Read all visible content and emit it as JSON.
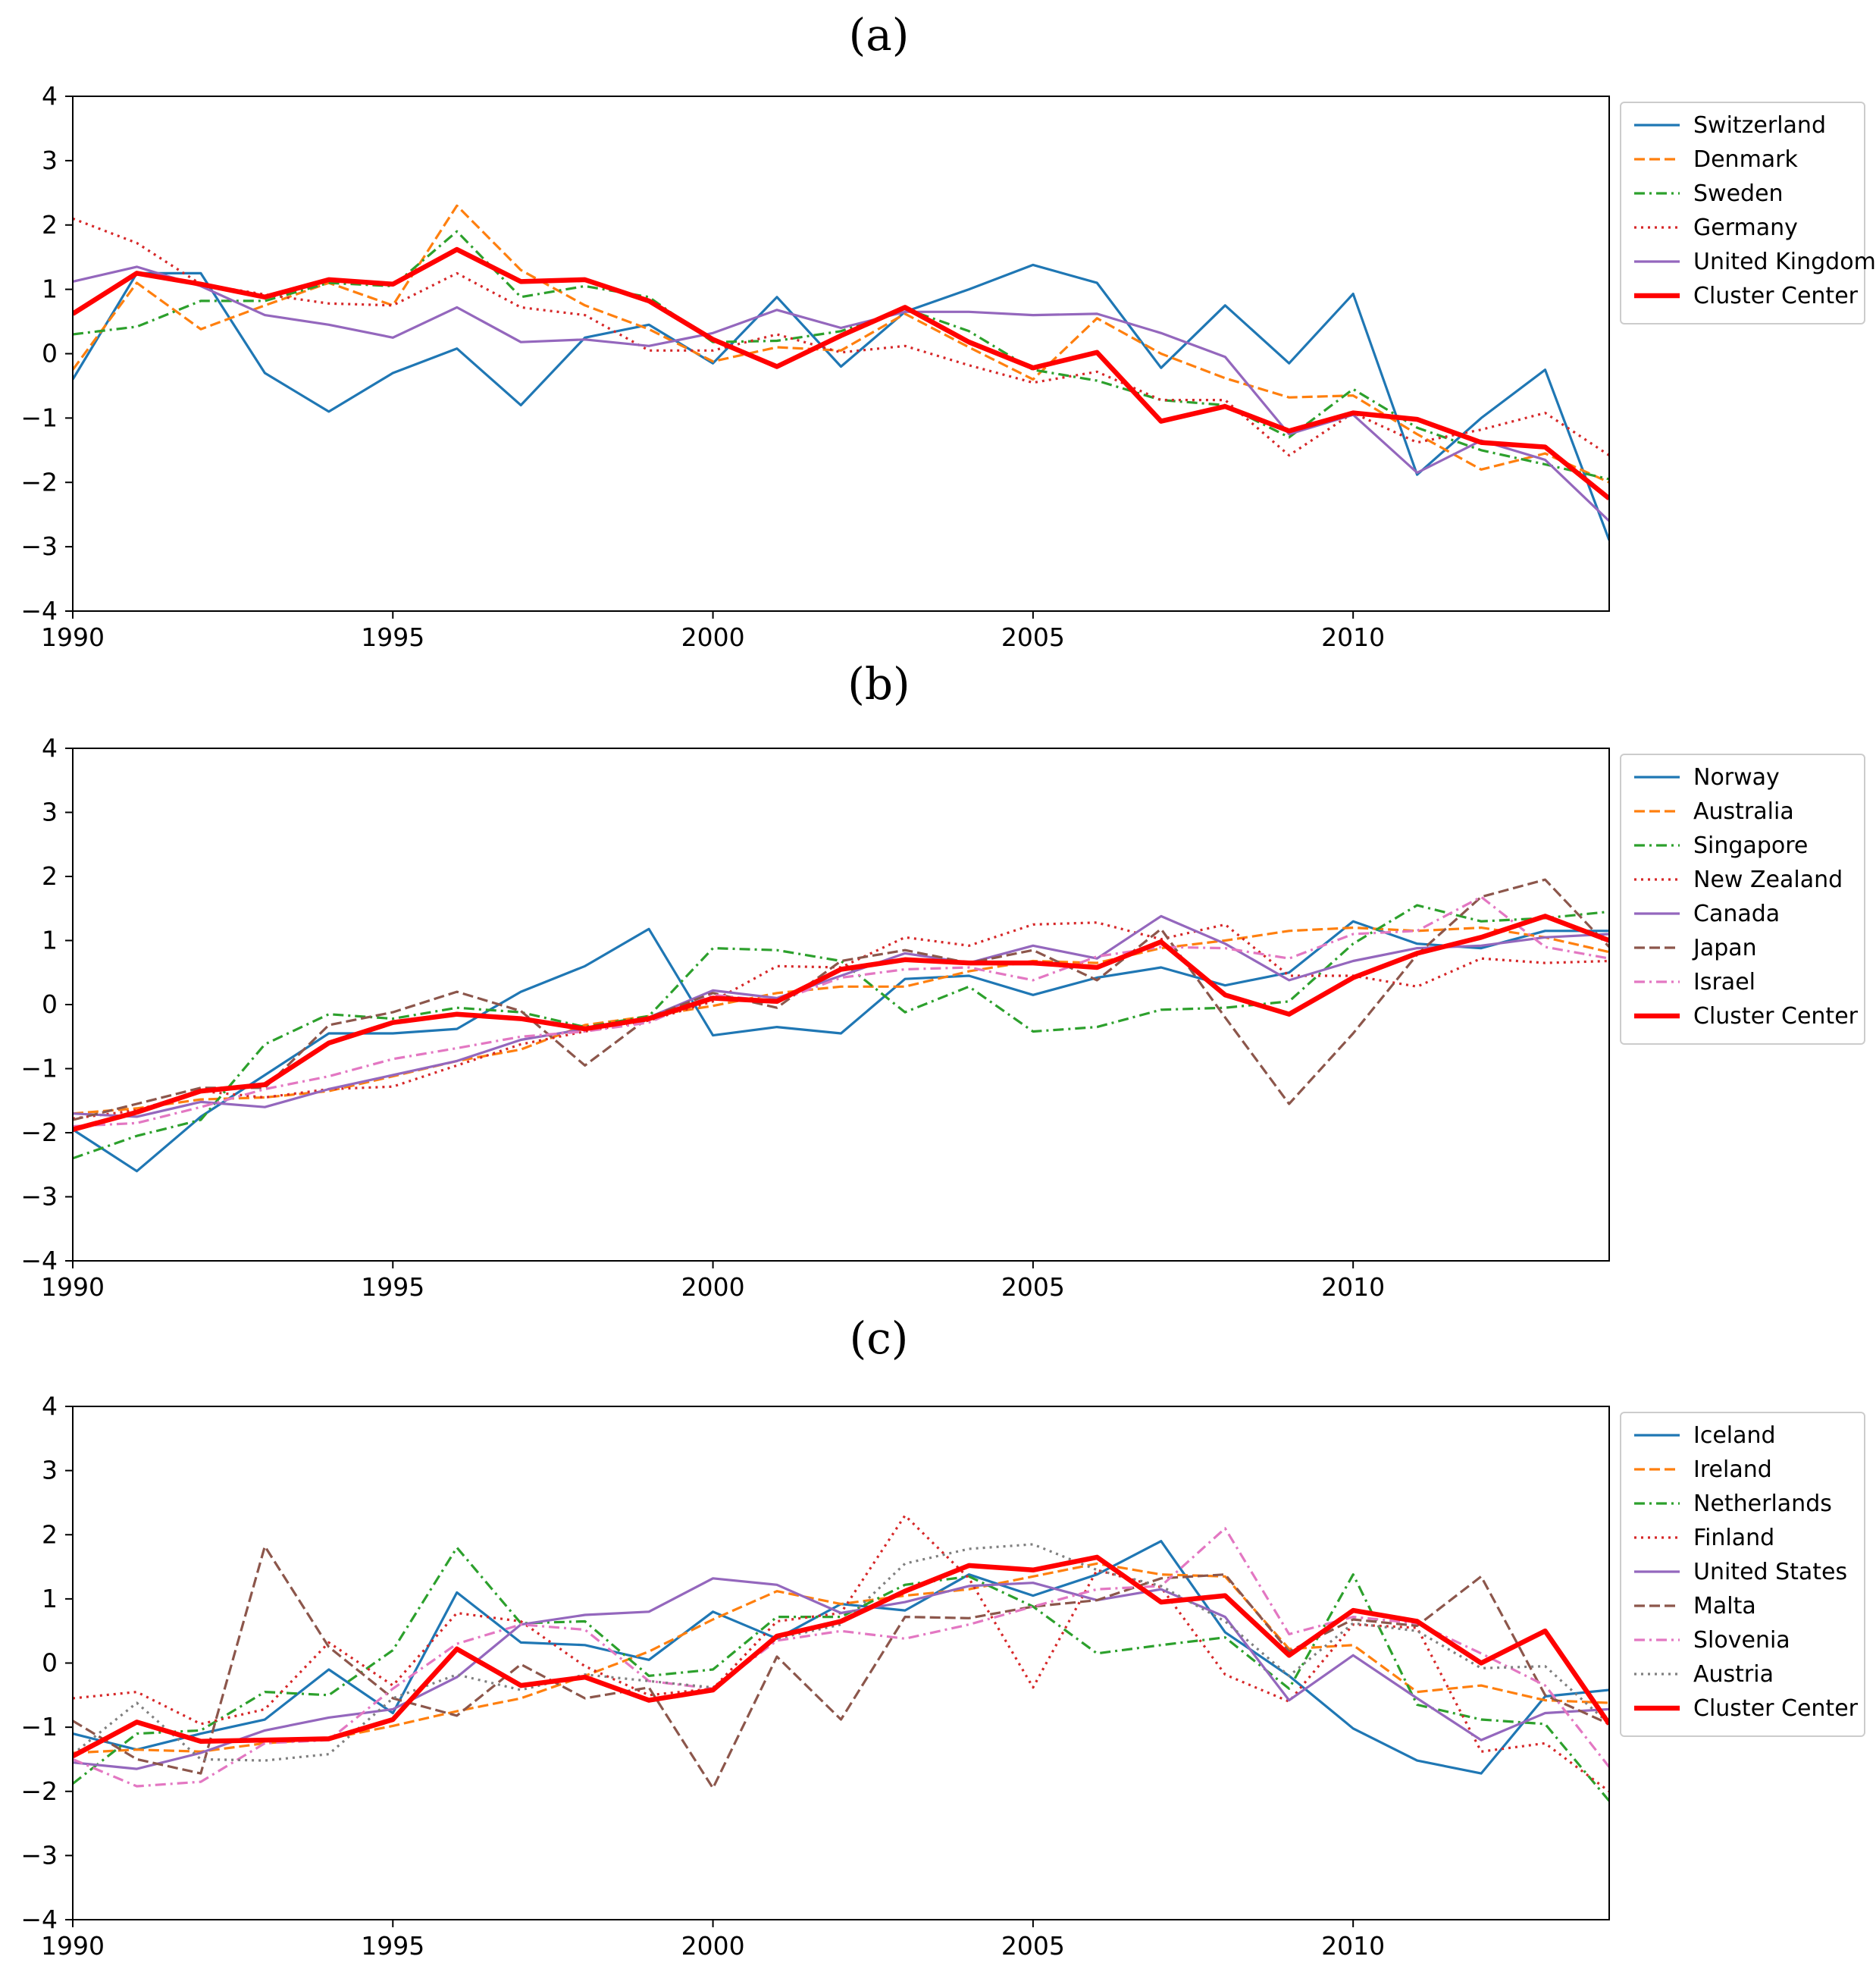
{
  "colors": {
    "blue": "#1f77b4",
    "orange": "#ff7f0e",
    "green": "#2ca02c",
    "red": "#d62728",
    "purple": "#9467bd",
    "brown": "#8c564b",
    "pink": "#e377c2",
    "gray": "#7f7f7f",
    "center": "#ff0000"
  },
  "chart_data": [
    {
      "type": "line",
      "title": "(a)",
      "x": [
        1990,
        1991,
        1992,
        1993,
        1994,
        1995,
        1996,
        1997,
        1998,
        1999,
        2000,
        2001,
        2002,
        2003,
        2004,
        2005,
        2006,
        2007,
        2008,
        2009,
        2010,
        2011,
        2012,
        2013,
        2014
      ],
      "xlim": [
        1990,
        2014
      ],
      "ylim": [
        -4,
        4
      ],
      "xticks": [
        "1990",
        "1995",
        "2000",
        "2005",
        "2010"
      ],
      "yticks": [
        "4",
        "3",
        "2",
        "1",
        "0",
        "−1",
        "−2",
        "−3",
        "−4"
      ],
      "legend_position": "outside-right",
      "series": [
        {
          "name": "Switzerland",
          "style": "solid",
          "color": "blue",
          "values": [
            -0.4,
            1.25,
            1.25,
            -0.3,
            -0.9,
            -0.3,
            0.08,
            -0.8,
            0.25,
            0.45,
            -0.15,
            0.88,
            -0.2,
            0.65,
            1.0,
            1.38,
            1.1,
            -0.22,
            0.75,
            -0.15,
            0.93,
            -1.88,
            -1.0,
            -0.25,
            -2.9
          ]
        },
        {
          "name": "Denmark",
          "style": "dashed",
          "color": "orange",
          "values": [
            -0.25,
            1.1,
            0.38,
            0.75,
            1.1,
            0.75,
            2.3,
            1.3,
            0.75,
            0.38,
            -0.12,
            0.1,
            0.05,
            0.62,
            0.1,
            -0.4,
            0.55,
            0.0,
            -0.38,
            -0.68,
            -0.65,
            -1.25,
            -1.8,
            -1.55,
            -2.0
          ]
        },
        {
          "name": "Sweden",
          "style": "dashdot",
          "color": "green",
          "values": [
            0.3,
            0.42,
            0.82,
            0.82,
            1.1,
            1.05,
            1.9,
            0.88,
            1.05,
            0.88,
            0.18,
            0.2,
            0.35,
            0.7,
            0.35,
            -0.25,
            -0.42,
            -0.72,
            -0.8,
            -1.3,
            -0.55,
            -1.15,
            -1.5,
            -1.72,
            -1.95
          ]
        },
        {
          "name": "Germany",
          "style": "dotted",
          "color": "red",
          "values": [
            2.1,
            1.72,
            1.08,
            0.92,
            0.78,
            0.75,
            1.25,
            0.72,
            0.6,
            0.05,
            0.05,
            0.3,
            0.02,
            0.12,
            -0.18,
            -0.45,
            -0.28,
            -0.72,
            -0.72,
            -1.58,
            -0.92,
            -1.38,
            -1.18,
            -0.92,
            -1.58
          ]
        },
        {
          "name": "United Kingdom",
          "style": "solid",
          "color": "purple",
          "values": [
            1.12,
            1.35,
            1.05,
            0.6,
            0.45,
            0.25,
            0.72,
            0.18,
            0.22,
            0.12,
            0.32,
            0.68,
            0.4,
            0.65,
            0.65,
            0.6,
            0.62,
            0.32,
            -0.05,
            -1.25,
            -0.95,
            -1.85,
            -1.35,
            -1.65,
            -2.6
          ]
        },
        {
          "name": "Cluster Center",
          "style": "thick",
          "color": "center",
          "values": [
            0.62,
            1.25,
            1.08,
            0.88,
            1.15,
            1.08,
            1.62,
            1.12,
            1.15,
            0.82,
            0.22,
            -0.2,
            0.28,
            0.72,
            0.18,
            -0.22,
            0.02,
            -1.05,
            -0.82,
            -1.2,
            -0.92,
            -1.02,
            -1.38,
            -1.45,
            -2.25
          ]
        }
      ]
    },
    {
      "type": "line",
      "title": "(b)",
      "x": [
        1990,
        1991,
        1992,
        1993,
        1994,
        1995,
        1996,
        1997,
        1998,
        1999,
        2000,
        2001,
        2002,
        2003,
        2004,
        2005,
        2006,
        2007,
        2008,
        2009,
        2010,
        2011,
        2012,
        2013,
        2014
      ],
      "xlim": [
        1990,
        2014
      ],
      "ylim": [
        -4,
        4
      ],
      "xticks": [
        "1990",
        "1995",
        "2000",
        "2005",
        "2010"
      ],
      "yticks": [
        "4",
        "3",
        "2",
        "1",
        "0",
        "−1",
        "−2",
        "−3",
        "−4"
      ],
      "legend_position": "outside-right",
      "series": [
        {
          "name": "Norway",
          "style": "solid",
          "color": "blue",
          "values": [
            -1.95,
            -2.6,
            -1.75,
            -1.1,
            -0.45,
            -0.45,
            -0.38,
            0.2,
            0.6,
            1.18,
            -0.48,
            -0.35,
            -0.45,
            0.4,
            0.45,
            0.15,
            0.42,
            0.58,
            0.3,
            0.5,
            1.3,
            0.95,
            0.88,
            1.15,
            1.15
          ]
        },
        {
          "name": "Australia",
          "style": "dashed",
          "color": "orange",
          "values": [
            -1.7,
            -1.62,
            -1.48,
            -1.45,
            -1.35,
            -1.12,
            -0.88,
            -0.7,
            -0.32,
            -0.18,
            -0.02,
            0.18,
            0.28,
            0.28,
            0.52,
            0.68,
            0.65,
            0.88,
            1.0,
            1.15,
            1.2,
            1.15,
            1.2,
            1.05,
            0.82
          ]
        },
        {
          "name": "Singapore",
          "style": "dashdot",
          "color": "green",
          "values": [
            -2.4,
            -2.05,
            -1.8,
            -0.62,
            -0.15,
            -0.22,
            -0.05,
            -0.12,
            -0.35,
            -0.18,
            0.88,
            0.85,
            0.68,
            -0.12,
            0.28,
            -0.42,
            -0.35,
            -0.08,
            -0.05,
            0.05,
            0.95,
            1.55,
            1.3,
            1.35,
            1.45
          ]
        },
        {
          "name": "New Zealand",
          "style": "dotted",
          "color": "red",
          "values": [
            -1.78,
            -1.65,
            -1.35,
            -1.45,
            -1.32,
            -1.28,
            -0.95,
            -0.62,
            -0.42,
            -0.25,
            0.05,
            0.6,
            0.58,
            1.05,
            0.92,
            1.25,
            1.28,
            1.02,
            1.25,
            0.45,
            0.45,
            0.28,
            0.72,
            0.65,
            0.68
          ]
        },
        {
          "name": "Canada",
          "style": "solid",
          "color": "purple",
          "values": [
            -1.7,
            -1.75,
            -1.52,
            -1.6,
            -1.32,
            -1.1,
            -0.88,
            -0.55,
            -0.38,
            -0.2,
            0.22,
            0.1,
            0.45,
            0.8,
            0.65,
            0.92,
            0.72,
            1.38,
            0.95,
            0.38,
            0.68,
            0.88,
            0.92,
            1.05,
            1.1
          ]
        },
        {
          "name": "Japan",
          "style": "dashed",
          "color": "brown",
          "values": [
            -1.8,
            -1.55,
            -1.3,
            -1.3,
            -0.32,
            -0.12,
            0.2,
            -0.1,
            -0.95,
            -0.2,
            0.18,
            -0.05,
            0.68,
            0.85,
            0.65,
            0.85,
            0.38,
            1.18,
            -0.2,
            -1.55,
            -0.45,
            0.78,
            1.68,
            1.95,
            0.9
          ]
        },
        {
          "name": "Israel",
          "style": "dashdot",
          "color": "pink",
          "values": [
            -1.9,
            -1.85,
            -1.6,
            -1.32,
            -1.12,
            -0.85,
            -0.68,
            -0.5,
            -0.42,
            -0.28,
            0.15,
            0.05,
            0.42,
            0.55,
            0.58,
            0.38,
            0.75,
            0.9,
            0.88,
            0.72,
            1.1,
            1.15,
            1.68,
            0.9,
            0.72
          ]
        },
        {
          "name": "Cluster Center",
          "style": "thick",
          "color": "center",
          "values": [
            -1.95,
            -1.68,
            -1.35,
            -1.25,
            -0.6,
            -0.28,
            -0.15,
            -0.22,
            -0.38,
            -0.22,
            0.1,
            0.05,
            0.55,
            0.7,
            0.65,
            0.65,
            0.58,
            0.98,
            0.15,
            -0.15,
            0.42,
            0.8,
            1.05,
            1.38,
            1.0
          ]
        }
      ]
    },
    {
      "type": "line",
      "title": "(c)",
      "x": [
        1990,
        1991,
        1992,
        1993,
        1994,
        1995,
        1996,
        1997,
        1998,
        1999,
        2000,
        2001,
        2002,
        2003,
        2004,
        2005,
        2006,
        2007,
        2008,
        2009,
        2010,
        2011,
        2012,
        2013,
        2014
      ],
      "xlim": [
        1990,
        2014
      ],
      "ylim": [
        -4,
        4
      ],
      "xticks": [
        "1990",
        "1995",
        "2000",
        "2005",
        "2010"
      ],
      "yticks": [
        "4",
        "3",
        "2",
        "1",
        "0",
        "−1",
        "−2",
        "−3",
        "−4"
      ],
      "legend_position": "outside-right",
      "series": [
        {
          "name": "Iceland",
          "style": "solid",
          "color": "blue",
          "values": [
            -1.1,
            -1.35,
            -1.1,
            -0.88,
            -0.1,
            -0.78,
            1.1,
            0.32,
            0.28,
            0.05,
            0.8,
            0.38,
            0.92,
            0.82,
            1.38,
            1.05,
            1.38,
            1.9,
            0.48,
            -0.2,
            -1.02,
            -1.52,
            -1.72,
            -0.52,
            -0.42
          ]
        },
        {
          "name": "Ireland",
          "style": "dashed",
          "color": "orange",
          "values": [
            -1.4,
            -1.35,
            -1.38,
            -1.25,
            -1.18,
            -0.98,
            -0.75,
            -0.55,
            -0.2,
            0.18,
            0.68,
            1.12,
            0.92,
            1.05,
            1.15,
            1.35,
            1.55,
            1.38,
            1.35,
            0.22,
            0.28,
            -0.45,
            -0.35,
            -0.58,
            -0.62
          ]
        },
        {
          "name": "Netherlands",
          "style": "dashdot",
          "color": "green",
          "values": [
            -1.88,
            -1.1,
            -1.05,
            -0.45,
            -0.5,
            0.2,
            1.8,
            0.62,
            0.65,
            -0.2,
            -0.1,
            0.72,
            0.72,
            1.22,
            1.35,
            0.88,
            0.15,
            0.28,
            0.4,
            -0.4,
            1.38,
            -0.65,
            -0.88,
            -0.95,
            -2.15
          ]
        },
        {
          "name": "Finland",
          "style": "dotted",
          "color": "red",
          "values": [
            -0.55,
            -0.45,
            -0.95,
            -0.72,
            0.32,
            -0.35,
            0.78,
            0.65,
            -0.05,
            -0.5,
            -0.4,
            0.65,
            0.78,
            2.3,
            1.32,
            -0.38,
            1.45,
            1.18,
            -0.18,
            -0.6,
            0.6,
            0.55,
            -1.38,
            -1.25,
            -2.0
          ]
        },
        {
          "name": "United States",
          "style": "solid",
          "color": "purple",
          "values": [
            -1.55,
            -1.65,
            -1.4,
            -1.05,
            -0.85,
            -0.72,
            -0.22,
            0.6,
            0.75,
            0.8,
            1.32,
            1.22,
            0.78,
            0.95,
            1.2,
            1.25,
            0.98,
            1.15,
            0.72,
            -0.58,
            0.12,
            -0.55,
            -1.2,
            -0.78,
            -0.72
          ]
        },
        {
          "name": "Malta",
          "style": "dashed",
          "color": "brown",
          "values": [
            -0.9,
            -1.5,
            -1.72,
            1.82,
            0.25,
            -0.55,
            -0.82,
            -0.02,
            -0.55,
            -0.38,
            -1.95,
            0.1,
            -0.88,
            0.72,
            0.7,
            0.88,
            0.98,
            1.32,
            1.38,
            0.18,
            0.68,
            0.58,
            1.35,
            -0.5,
            -0.95
          ]
        },
        {
          "name": "Slovenia",
          "style": "dashdot",
          "color": "pink",
          "values": [
            -1.5,
            -1.92,
            -1.85,
            -1.25,
            -1.2,
            -0.4,
            0.3,
            0.6,
            0.52,
            -0.28,
            -0.4,
            0.35,
            0.5,
            0.38,
            0.6,
            0.88,
            1.15,
            1.2,
            2.1,
            0.45,
            0.72,
            0.62,
            0.15,
            -0.35,
            -1.62
          ]
        },
        {
          "name": "Austria",
          "style": "dotted",
          "color": "gray",
          "values": [
            -1.42,
            -0.62,
            -1.5,
            -1.52,
            -1.42,
            -0.55,
            -0.18,
            -0.42,
            -0.18,
            -0.28,
            -0.38,
            0.38,
            0.6,
            1.55,
            1.78,
            1.85,
            1.45,
            1.2,
            0.65,
            -0.2,
            0.62,
            0.5,
            -0.08,
            -0.05,
            -0.95
          ]
        },
        {
          "name": "Cluster Center",
          "style": "thick",
          "color": "center",
          "values": [
            -1.45,
            -0.92,
            -1.22,
            -1.2,
            -1.18,
            -0.88,
            0.22,
            -0.35,
            -0.22,
            -0.58,
            -0.42,
            0.42,
            0.65,
            1.12,
            1.52,
            1.45,
            1.65,
            0.95,
            1.05,
            0.12,
            0.82,
            0.65,
            0.0,
            0.5,
            -0.95
          ]
        }
      ]
    }
  ]
}
